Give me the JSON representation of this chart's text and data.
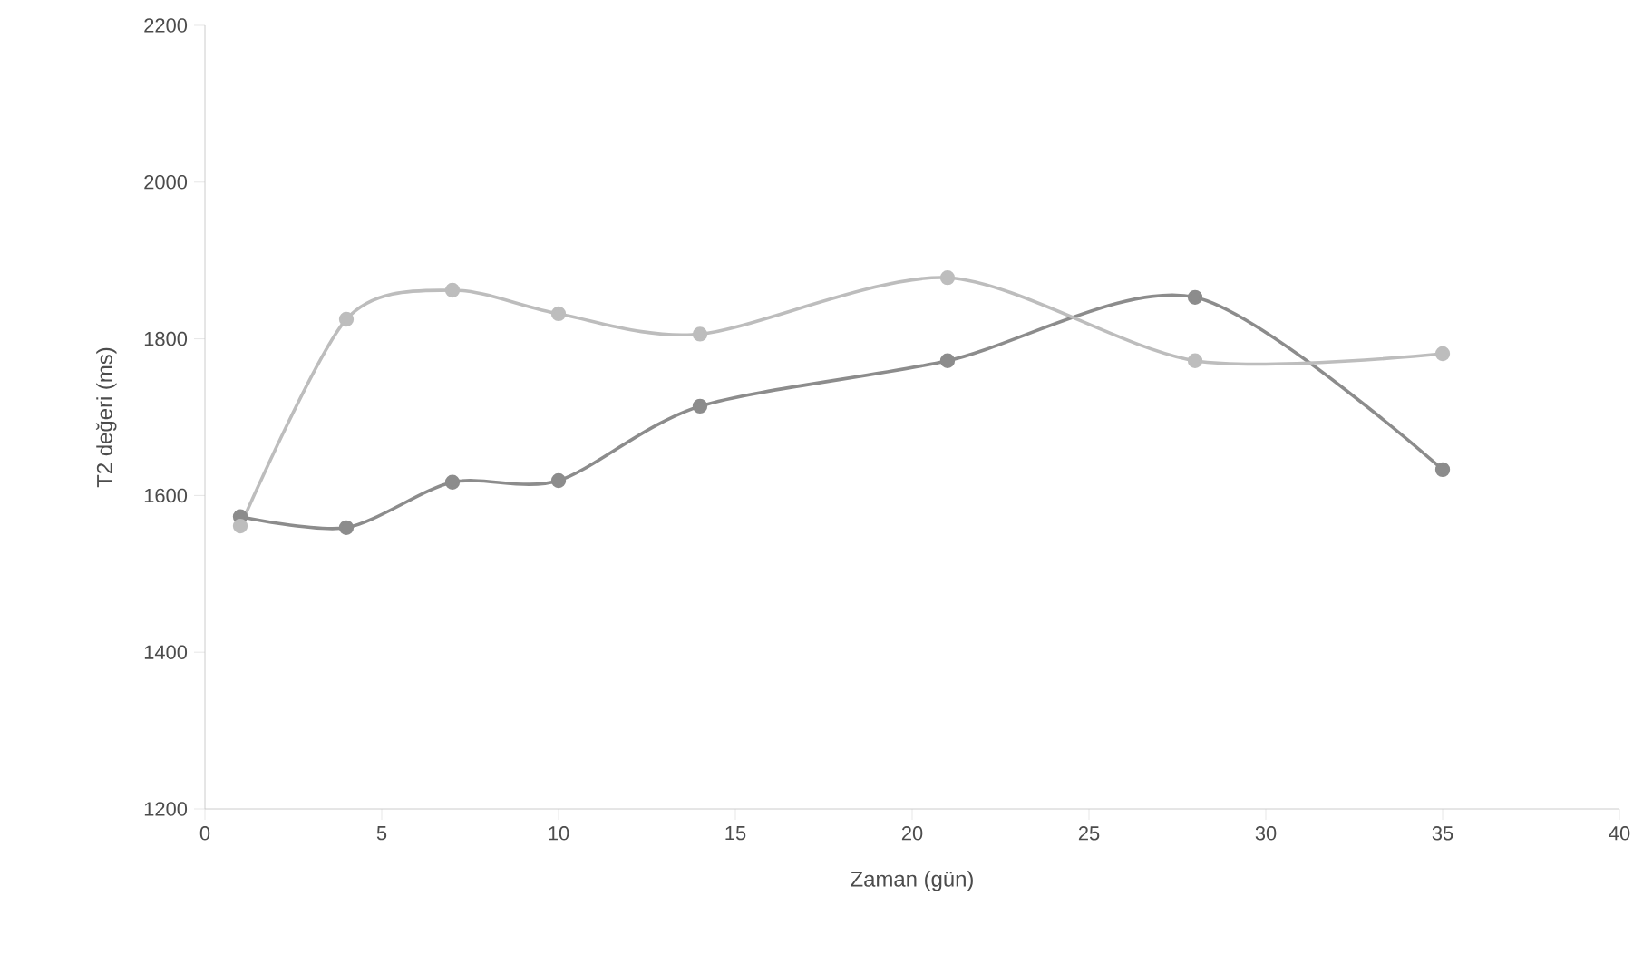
{
  "chart_data": {
    "type": "line",
    "xlabel": "Zaman (gün)",
    "ylabel": "T2 değeri (ms)",
    "x": [
      1,
      4,
      7,
      10,
      14,
      21,
      28,
      35
    ],
    "series": [
      {
        "color": "#8c8c8c",
        "values": [
          1573,
          1559,
          1617,
          1619,
          1714,
          1772,
          1853,
          1633
        ]
      },
      {
        "color": "#bdbdbd",
        "values": [
          1561,
          1825,
          1862,
          1832,
          1806,
          1878,
          1772,
          1781
        ]
      }
    ],
    "xlim": [
      0,
      40
    ],
    "xticks": [
      0,
      5,
      10,
      15,
      20,
      25,
      30,
      35,
      40
    ],
    "ylim": [
      1200,
      2200
    ],
    "yticks": [
      1200,
      1400,
      1600,
      1800,
      2000,
      2200
    ],
    "marker": "circle",
    "line_style": "solid"
  }
}
